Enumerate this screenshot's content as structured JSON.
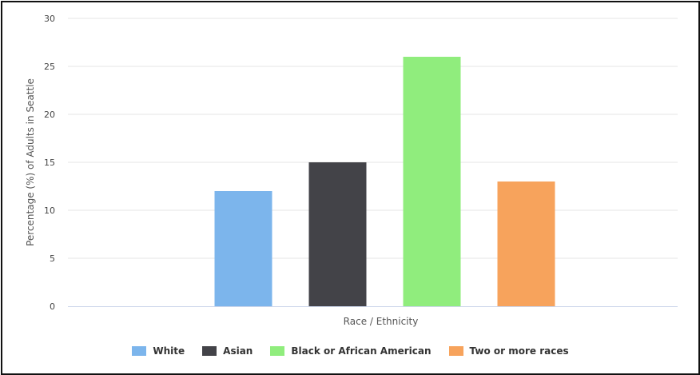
{
  "chart_data": {
    "type": "bar",
    "categories": [
      "White",
      "Asian",
      "Black or African American",
      "Two or more races"
    ],
    "values": [
      12,
      15,
      26,
      13
    ],
    "colors": [
      "#7cb5ec",
      "#434348",
      "#90ed7d",
      "#f7a35c"
    ],
    "title": "",
    "xlabel": "Race / Ethnicity",
    "ylabel": "Percentage (%) of Adults in Seattle",
    "ylim": [
      0,
      30
    ],
    "yticks": [
      0,
      5,
      10,
      15,
      20,
      25,
      30
    ],
    "grid": true,
    "legend_position": "bottom-center"
  }
}
